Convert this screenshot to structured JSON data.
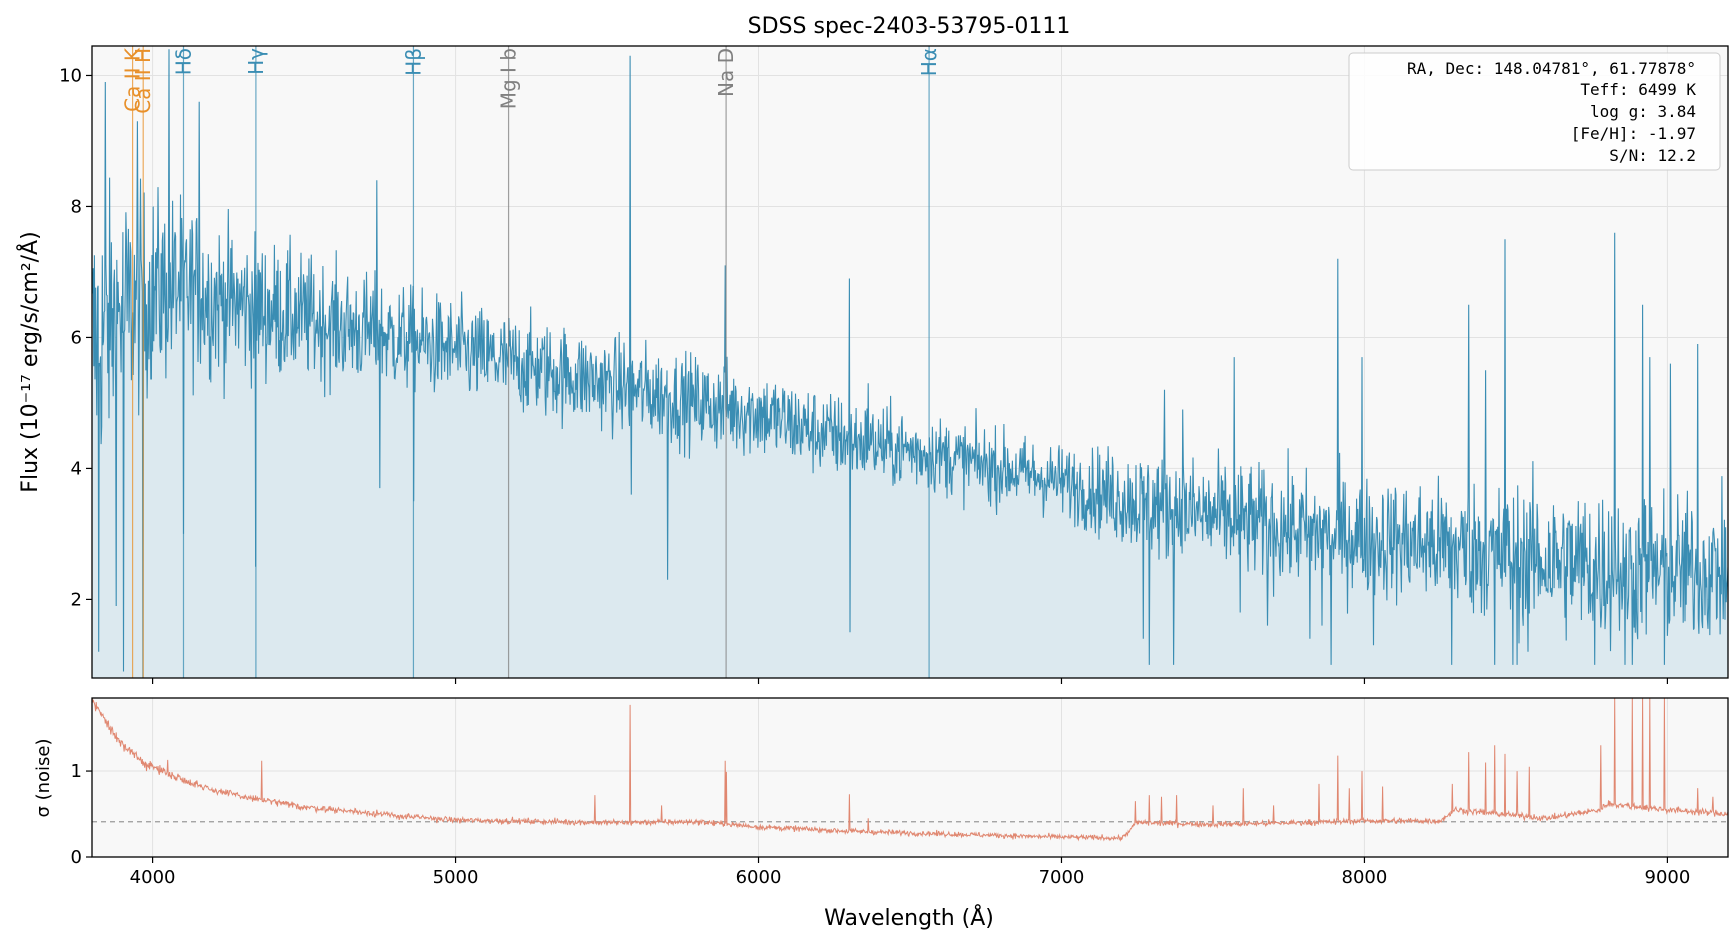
{
  "chart_data": [
    {
      "type": "line",
      "panel": "flux",
      "title": "SDSS spec-2403-53795-0111",
      "xlabel": "",
      "ylabel": "Flux (10⁻¹⁷ erg/s/cm²/Å)",
      "xlim": [
        3800,
        9200
      ],
      "ylim": [
        0.8,
        10.45
      ],
      "xticks": [
        4000,
        5000,
        6000,
        7000,
        8000,
        9000
      ],
      "yticks": [
        2,
        4,
        6,
        8,
        10
      ],
      "ytick_labels": [
        "2",
        "4",
        "6",
        "8",
        "10"
      ],
      "grid": true,
      "line_color": "#3a8db3",
      "fill_color": "#dce9ef",
      "background": "#f8f8f8",
      "continuum_anchors": [
        [
          3800,
          5.9
        ],
        [
          3900,
          6.4
        ],
        [
          4000,
          6.7
        ],
        [
          4100,
          6.8
        ],
        [
          4200,
          6.6
        ],
        [
          4400,
          6.4
        ],
        [
          4600,
          6.2
        ],
        [
          4800,
          6.0
        ],
        [
          5000,
          5.8
        ],
        [
          5200,
          5.6
        ],
        [
          5400,
          5.4
        ],
        [
          5600,
          5.2
        ],
        [
          5800,
          5.0
        ],
        [
          6000,
          4.85
        ],
        [
          6200,
          4.55
        ],
        [
          6400,
          4.35
        ],
        [
          6600,
          4.2
        ],
        [
          6800,
          4.0
        ],
        [
          7000,
          3.8
        ],
        [
          7200,
          3.55
        ],
        [
          7400,
          3.35
        ],
        [
          7600,
          3.2
        ],
        [
          7800,
          3.05
        ],
        [
          8000,
          2.95
        ],
        [
          8200,
          2.85
        ],
        [
          8400,
          2.75
        ],
        [
          8600,
          2.6
        ],
        [
          8800,
          2.5
        ],
        [
          9000,
          2.45
        ],
        [
          9200,
          2.45
        ]
      ],
      "noise_scale_anchors": [
        [
          3800,
          1.1
        ],
        [
          4000,
          0.75
        ],
        [
          4200,
          0.6
        ],
        [
          4600,
          0.45
        ],
        [
          5000,
          0.38
        ],
        [
          6000,
          0.35
        ],
        [
          6500,
          0.3
        ],
        [
          7000,
          0.28
        ],
        [
          7300,
          0.42
        ],
        [
          8000,
          0.45
        ],
        [
          8300,
          0.5
        ],
        [
          8800,
          0.6
        ],
        [
          9200,
          0.55
        ]
      ],
      "spikes": [
        [
          3823,
          1.2
        ],
        [
          3845,
          9.9
        ],
        [
          3880,
          1.9
        ],
        [
          3905,
          0.9
        ],
        [
          3950,
          9.3
        ],
        [
          3968,
          0.8
        ],
        [
          4055,
          10.4
        ],
        [
          4103,
          3.0
        ],
        [
          4155,
          9.6
        ],
        [
          4341,
          2.5
        ],
        [
          4740,
          8.4
        ],
        [
          4750,
          3.7
        ],
        [
          4862,
          3.5
        ],
        [
          5577,
          10.3
        ],
        [
          5580,
          3.6
        ],
        [
          5700,
          2.3
        ],
        [
          5890,
          7.1
        ],
        [
          6300,
          6.9
        ],
        [
          6303,
          1.5
        ],
        [
          6363,
          5.3
        ],
        [
          7270,
          1.4
        ],
        [
          7290,
          1.0
        ],
        [
          7340,
          5.2
        ],
        [
          7370,
          1.0
        ],
        [
          7400,
          4.9
        ],
        [
          7570,
          5.7
        ],
        [
          7590,
          1.8
        ],
        [
          7680,
          1.6
        ],
        [
          7820,
          1.4
        ],
        [
          7860,
          1.6
        ],
        [
          7890,
          1.0
        ],
        [
          7913,
          7.2
        ],
        [
          7993,
          5.7
        ],
        [
          8030,
          1.3
        ],
        [
          8289,
          1.0
        ],
        [
          8345,
          6.5
        ],
        [
          8400,
          5.5
        ],
        [
          8430,
          1.0
        ],
        [
          8465,
          7.5
        ],
        [
          8490,
          1.0
        ],
        [
          8505,
          1.0
        ],
        [
          8540,
          1.2
        ],
        [
          8760,
          1.0
        ],
        [
          8827,
          7.6
        ],
        [
          8860,
          1.0
        ],
        [
          8885,
          1.0
        ],
        [
          8919,
          6.5
        ],
        [
          8943,
          5.7
        ],
        [
          8990,
          1.0
        ],
        [
          9010,
          5.6
        ],
        [
          9100,
          5.9
        ],
        [
          9185,
          1.7
        ]
      ],
      "series": [],
      "reference_lines": [
        {
          "label": "Ca II K",
          "wavelength": 3934,
          "color": "#e8902a"
        },
        {
          "label": "Ca II H",
          "wavelength": 3969,
          "color": "#e8902a"
        },
        {
          "label": "Hδ",
          "wavelength": 4102,
          "color": "#3a8db3"
        },
        {
          "label": "Hγ",
          "wavelength": 4341,
          "color": "#3a8db3"
        },
        {
          "label": "Hβ",
          "wavelength": 4861,
          "color": "#3a8db3"
        },
        {
          "label": "Mg I b",
          "wavelength": 5175,
          "color": "#808080"
        },
        {
          "label": "Na D",
          "wavelength": 5893,
          "color": "#808080"
        },
        {
          "label": "Hα",
          "wavelength": 6563,
          "color": "#3a8db3"
        }
      ],
      "info_box": {
        "placement": "top-right",
        "lines": [
          "RA, Dec: 148.04781°, 61.77878°",
          "Teff: 6499 K",
          "log g: 3.84",
          "[Fe/H]: -1.97",
          "S/N: 12.2"
        ]
      }
    },
    {
      "type": "line",
      "panel": "noise",
      "xlabel": "Wavelength (Å)",
      "ylabel": "σ (noise)",
      "xlim": [
        3800,
        9200
      ],
      "ylim": [
        0,
        1.85
      ],
      "xticks": [
        4000,
        5000,
        6000,
        7000,
        8000,
        9000
      ],
      "xtick_labels": [
        "4000",
        "5000",
        "6000",
        "7000",
        "8000",
        "9000"
      ],
      "yticks": [
        0,
        1
      ],
      "ytick_labels": [
        "0",
        "1"
      ],
      "grid": true,
      "line_color": "#e08770",
      "median_line": {
        "value": 0.41,
        "color": "#999999",
        "style": "dashed"
      },
      "baseline_anchors": [
        [
          3800,
          1.85
        ],
        [
          3850,
          1.55
        ],
        [
          3900,
          1.3
        ],
        [
          3950,
          1.15
        ],
        [
          4000,
          1.05
        ],
        [
          4100,
          0.9
        ],
        [
          4200,
          0.78
        ],
        [
          4300,
          0.7
        ],
        [
          4400,
          0.64
        ],
        [
          4500,
          0.58
        ],
        [
          4600,
          0.55
        ],
        [
          4700,
          0.52
        ],
        [
          4800,
          0.48
        ],
        [
          5000,
          0.43
        ],
        [
          5500,
          0.4
        ],
        [
          5800,
          0.41
        ],
        [
          6000,
          0.35
        ],
        [
          6300,
          0.3
        ],
        [
          6600,
          0.27
        ],
        [
          6900,
          0.24
        ],
        [
          7200,
          0.22
        ],
        [
          7250,
          0.4
        ],
        [
          7500,
          0.38
        ],
        [
          7800,
          0.4
        ],
        [
          8000,
          0.42
        ],
        [
          8250,
          0.42
        ],
        [
          8300,
          0.55
        ],
        [
          8600,
          0.45
        ],
        [
          8780,
          0.55
        ],
        [
          8800,
          0.62
        ],
        [
          9000,
          0.55
        ],
        [
          9200,
          0.5
        ]
      ],
      "spikes": [
        [
          3980,
          1.0
        ],
        [
          4050,
          1.13
        ],
        [
          4360,
          1.12
        ],
        [
          4740,
          0.55
        ],
        [
          5460,
          0.72
        ],
        [
          5577,
          1.77
        ],
        [
          5680,
          0.6
        ],
        [
          5890,
          1.12
        ],
        [
          5895,
          0.99
        ],
        [
          6300,
          0.73
        ],
        [
          6363,
          0.45
        ],
        [
          7245,
          0.65
        ],
        [
          7290,
          0.72
        ],
        [
          7330,
          0.7
        ],
        [
          7380,
          0.72
        ],
        [
          7500,
          0.6
        ],
        [
          7600,
          0.8
        ],
        [
          7700,
          0.6
        ],
        [
          7850,
          0.85
        ],
        [
          7913,
          1.18
        ],
        [
          7950,
          0.8
        ],
        [
          7993,
          1.0
        ],
        [
          8060,
          0.82
        ],
        [
          8290,
          0.85
        ],
        [
          8345,
          1.22
        ],
        [
          8400,
          1.1
        ],
        [
          8430,
          1.3
        ],
        [
          8465,
          1.2
        ],
        [
          8505,
          1.0
        ],
        [
          8545,
          1.05
        ],
        [
          8780,
          1.3
        ],
        [
          8827,
          1.85
        ],
        [
          8885,
          1.85
        ],
        [
          8919,
          1.85
        ],
        [
          8943,
          1.85
        ],
        [
          8990,
          1.85
        ],
        [
          9100,
          0.8
        ],
        [
          9150,
          0.7
        ]
      ],
      "series": []
    }
  ]
}
